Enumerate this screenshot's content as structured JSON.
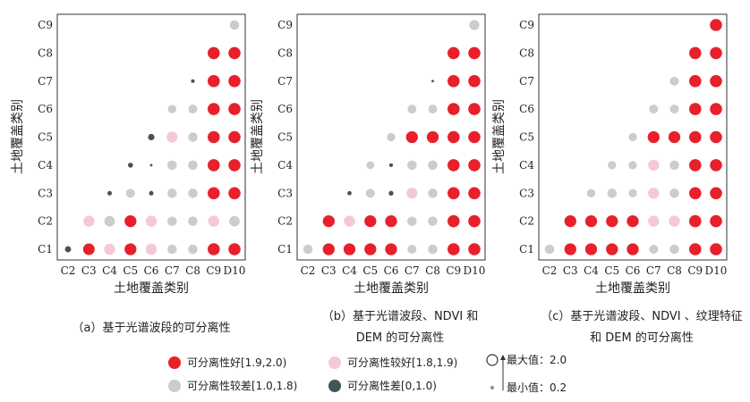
{
  "colors": {
    "good": "#e8202a",
    "fair": "#f4c9d6",
    "poor": "#cccccc",
    "bad": "#45535a"
  },
  "chart_data": [
    {
      "type": "scatter",
      "title": "",
      "xlabel": "土地覆盖类别",
      "ylabel": "土地覆盖类别",
      "x_categories": [
        "C2",
        "C3",
        "C4",
        "C5",
        "C6",
        "C7",
        "C8",
        "C9",
        "D10"
      ],
      "y_categories": [
        "C1",
        "C2",
        "C3",
        "C4",
        "C5",
        "C6",
        "C7",
        "C8",
        "C9"
      ],
      "caption": "（a）基于光谱波段的可分离性",
      "points": [
        {
          "x": "C2",
          "y": "C1",
          "value": 0.9
        },
        {
          "x": "C3",
          "y": "C1",
          "value": 1.9
        },
        {
          "x": "C4",
          "y": "C1",
          "value": 1.8
        },
        {
          "x": "C5",
          "y": "C1",
          "value": 1.95
        },
        {
          "x": "C6",
          "y": "C1",
          "value": 1.8
        },
        {
          "x": "C7",
          "y": "C1",
          "value": 1.5
        },
        {
          "x": "C8",
          "y": "C1",
          "value": 1.5
        },
        {
          "x": "C9",
          "y": "C1",
          "value": 2.0
        },
        {
          "x": "D10",
          "y": "C1",
          "value": 2.0
        },
        {
          "x": "C3",
          "y": "C2",
          "value": 1.8
        },
        {
          "x": "C4",
          "y": "C2",
          "value": 1.7
        },
        {
          "x": "C5",
          "y": "C2",
          "value": 1.95
        },
        {
          "x": "C6",
          "y": "C2",
          "value": 1.8
        },
        {
          "x": "C7",
          "y": "C2",
          "value": 1.5
        },
        {
          "x": "C8",
          "y": "C2",
          "value": 1.5
        },
        {
          "x": "C9",
          "y": "C2",
          "value": 1.8
        },
        {
          "x": "D10",
          "y": "C2",
          "value": 1.7
        },
        {
          "x": "C4",
          "y": "C3",
          "value": 0.6
        },
        {
          "x": "C5",
          "y": "C3",
          "value": 1.4
        },
        {
          "x": "C6",
          "y": "C3",
          "value": 0.6
        },
        {
          "x": "C7",
          "y": "C3",
          "value": 1.5
        },
        {
          "x": "C8",
          "y": "C3",
          "value": 1.5
        },
        {
          "x": "C9",
          "y": "C3",
          "value": 2.0
        },
        {
          "x": "D10",
          "y": "C3",
          "value": 2.0
        },
        {
          "x": "C5",
          "y": "C4",
          "value": 0.7
        },
        {
          "x": "C6",
          "y": "C4",
          "value": 0.25
        },
        {
          "x": "C7",
          "y": "C4",
          "value": 1.5
        },
        {
          "x": "C8",
          "y": "C4",
          "value": 1.5
        },
        {
          "x": "C9",
          "y": "C4",
          "value": 2.0
        },
        {
          "x": "D10",
          "y": "C4",
          "value": 2.0
        },
        {
          "x": "C6",
          "y": "C5",
          "value": 0.95
        },
        {
          "x": "C7",
          "y": "C5",
          "value": 1.8
        },
        {
          "x": "C8",
          "y": "C5",
          "value": 1.5
        },
        {
          "x": "C9",
          "y": "C5",
          "value": 2.0
        },
        {
          "x": "D10",
          "y": "C5",
          "value": 2.0
        },
        {
          "x": "C7",
          "y": "C6",
          "value": 1.3
        },
        {
          "x": "C8",
          "y": "C6",
          "value": 1.4
        },
        {
          "x": "C9",
          "y": "C6",
          "value": 2.0
        },
        {
          "x": "D10",
          "y": "C6",
          "value": 2.0
        },
        {
          "x": "C8",
          "y": "C7",
          "value": 0.45
        },
        {
          "x": "C9",
          "y": "C7",
          "value": 2.0
        },
        {
          "x": "D10",
          "y": "C7",
          "value": 2.0
        },
        {
          "x": "C9",
          "y": "C8",
          "value": 2.0
        },
        {
          "x": "D10",
          "y": "C8",
          "value": 2.0
        },
        {
          "x": "D10",
          "y": "C9",
          "value": 1.5
        }
      ]
    },
    {
      "type": "scatter",
      "title": "",
      "xlabel": "土地覆盖类别",
      "ylabel": "土地覆盖类别",
      "x_categories": [
        "C2",
        "C3",
        "C4",
        "C5",
        "C6",
        "C7",
        "C8",
        "C9",
        "D10"
      ],
      "y_categories": [
        "C1",
        "C2",
        "C3",
        "C4",
        "C5",
        "C6",
        "C7",
        "C8",
        "C9"
      ],
      "caption": "（b）基于光谱波段、NDVI 和",
      "caption2": "DEM 的可分离性",
      "points": [
        {
          "x": "C2",
          "y": "C1",
          "value": 1.5
        },
        {
          "x": "C3",
          "y": "C1",
          "value": 1.95
        },
        {
          "x": "C4",
          "y": "C1",
          "value": 1.95
        },
        {
          "x": "C5",
          "y": "C1",
          "value": 1.95
        },
        {
          "x": "C6",
          "y": "C1",
          "value": 1.95
        },
        {
          "x": "C7",
          "y": "C1",
          "value": 1.4
        },
        {
          "x": "C8",
          "y": "C1",
          "value": 1.5
        },
        {
          "x": "C9",
          "y": "C1",
          "value": 2.0
        },
        {
          "x": "D10",
          "y": "C1",
          "value": 2.0
        },
        {
          "x": "C3",
          "y": "C2",
          "value": 1.95
        },
        {
          "x": "C4",
          "y": "C2",
          "value": 1.8
        },
        {
          "x": "C5",
          "y": "C2",
          "value": 1.95
        },
        {
          "x": "C6",
          "y": "C2",
          "value": 1.95
        },
        {
          "x": "C7",
          "y": "C2",
          "value": 1.5
        },
        {
          "x": "C8",
          "y": "C2",
          "value": 1.5
        },
        {
          "x": "C9",
          "y": "C2",
          "value": 2.0
        },
        {
          "x": "D10",
          "y": "C2",
          "value": 2.0
        },
        {
          "x": "C4",
          "y": "C3",
          "value": 0.55
        },
        {
          "x": "C5",
          "y": "C3",
          "value": 1.4
        },
        {
          "x": "C6",
          "y": "C3",
          "value": 0.65
        },
        {
          "x": "C7",
          "y": "C3",
          "value": 1.8
        },
        {
          "x": "C8",
          "y": "C3",
          "value": 1.5
        },
        {
          "x": "C9",
          "y": "C3",
          "value": 2.0
        },
        {
          "x": "D10",
          "y": "C3",
          "value": 2.0
        },
        {
          "x": "C5",
          "y": "C4",
          "value": 1.2
        },
        {
          "x": "C6",
          "y": "C4",
          "value": 0.45
        },
        {
          "x": "C7",
          "y": "C4",
          "value": 1.5
        },
        {
          "x": "C8",
          "y": "C4",
          "value": 1.5
        },
        {
          "x": "C9",
          "y": "C4",
          "value": 2.0
        },
        {
          "x": "D10",
          "y": "C4",
          "value": 2.0
        },
        {
          "x": "C6",
          "y": "C5",
          "value": 1.3
        },
        {
          "x": "C7",
          "y": "C5",
          "value": 1.95
        },
        {
          "x": "C8",
          "y": "C5",
          "value": 1.95
        },
        {
          "x": "C9",
          "y": "C5",
          "value": 2.0
        },
        {
          "x": "D10",
          "y": "C5",
          "value": 2.0
        },
        {
          "x": "C7",
          "y": "C6",
          "value": 1.4
        },
        {
          "x": "C8",
          "y": "C6",
          "value": 1.4
        },
        {
          "x": "C9",
          "y": "C6",
          "value": 2.0
        },
        {
          "x": "D10",
          "y": "C6",
          "value": 2.0
        },
        {
          "x": "C8",
          "y": "C7",
          "value": 0.25
        },
        {
          "x": "C9",
          "y": "C7",
          "value": 2.0
        },
        {
          "x": "D10",
          "y": "C7",
          "value": 2.0
        },
        {
          "x": "C9",
          "y": "C8",
          "value": 2.0
        },
        {
          "x": "D10",
          "y": "C8",
          "value": 2.0
        },
        {
          "x": "D10",
          "y": "C9",
          "value": 1.6
        }
      ]
    },
    {
      "type": "scatter",
      "title": "",
      "xlabel": "土地覆盖类别",
      "ylabel": "土地覆盖类别",
      "x_categories": [
        "C2",
        "C3",
        "C4",
        "C5",
        "C6",
        "C7",
        "C8",
        "C9",
        "D10"
      ],
      "y_categories": [
        "C1",
        "C2",
        "C3",
        "C4",
        "C5",
        "C6",
        "C7",
        "C8",
        "C9"
      ],
      "caption": "（c）基于光谱波段、NDVI 、纹理特征",
      "caption2": "和 DEM 的可分离性",
      "points": [
        {
          "x": "C2",
          "y": "C1",
          "value": 1.5
        },
        {
          "x": "C3",
          "y": "C1",
          "value": 1.95
        },
        {
          "x": "C4",
          "y": "C1",
          "value": 1.95
        },
        {
          "x": "C5",
          "y": "C1",
          "value": 1.95
        },
        {
          "x": "C6",
          "y": "C1",
          "value": 1.95
        },
        {
          "x": "C7",
          "y": "C1",
          "value": 1.4
        },
        {
          "x": "C8",
          "y": "C1",
          "value": 1.5
        },
        {
          "x": "C9",
          "y": "C1",
          "value": 2.0
        },
        {
          "x": "D10",
          "y": "C1",
          "value": 2.0
        },
        {
          "x": "C3",
          "y": "C2",
          "value": 1.95
        },
        {
          "x": "C4",
          "y": "C2",
          "value": 1.95
        },
        {
          "x": "C5",
          "y": "C2",
          "value": 1.95
        },
        {
          "x": "C6",
          "y": "C2",
          "value": 1.95
        },
        {
          "x": "C7",
          "y": "C2",
          "value": 1.8
        },
        {
          "x": "C8",
          "y": "C2",
          "value": 1.8
        },
        {
          "x": "C9",
          "y": "C2",
          "value": 2.0
        },
        {
          "x": "D10",
          "y": "C2",
          "value": 2.0
        },
        {
          "x": "C4",
          "y": "C3",
          "value": 1.3
        },
        {
          "x": "C5",
          "y": "C3",
          "value": 1.5
        },
        {
          "x": "C6",
          "y": "C3",
          "value": 1.3
        },
        {
          "x": "C7",
          "y": "C3",
          "value": 1.8
        },
        {
          "x": "C8",
          "y": "C3",
          "value": 1.5
        },
        {
          "x": "C9",
          "y": "C3",
          "value": 2.0
        },
        {
          "x": "D10",
          "y": "C3",
          "value": 2.0
        },
        {
          "x": "C5",
          "y": "C4",
          "value": 1.3
        },
        {
          "x": "C6",
          "y": "C4",
          "value": 1.3
        },
        {
          "x": "C7",
          "y": "C4",
          "value": 1.8
        },
        {
          "x": "C8",
          "y": "C4",
          "value": 1.5
        },
        {
          "x": "C9",
          "y": "C4",
          "value": 2.0
        },
        {
          "x": "D10",
          "y": "C4",
          "value": 2.0
        },
        {
          "x": "C6",
          "y": "C5",
          "value": 1.3
        },
        {
          "x": "C7",
          "y": "C5",
          "value": 1.95
        },
        {
          "x": "C8",
          "y": "C5",
          "value": 1.95
        },
        {
          "x": "C9",
          "y": "C5",
          "value": 2.0
        },
        {
          "x": "D10",
          "y": "C5",
          "value": 2.0
        },
        {
          "x": "C7",
          "y": "C6",
          "value": 1.4
        },
        {
          "x": "C8",
          "y": "C6",
          "value": 1.4
        },
        {
          "x": "C9",
          "y": "C6",
          "value": 2.0
        },
        {
          "x": "D10",
          "y": "C6",
          "value": 2.0
        },
        {
          "x": "C8",
          "y": "C7",
          "value": 1.4
        },
        {
          "x": "C9",
          "y": "C7",
          "value": 2.0
        },
        {
          "x": "D10",
          "y": "C7",
          "value": 2.0
        },
        {
          "x": "C9",
          "y": "C8",
          "value": 2.0
        },
        {
          "x": "D10",
          "y": "C8",
          "value": 2.0
        },
        {
          "x": "D10",
          "y": "C9",
          "value": 2.0
        }
      ]
    }
  ],
  "legend": {
    "items": [
      {
        "key": "good",
        "label": "可分离性好[1.9,2.0)"
      },
      {
        "key": "fair",
        "label": "可分离性较好[1.8,1.9)"
      },
      {
        "key": "poor",
        "label": "可分离性较差[1.0,1.8)"
      },
      {
        "key": "bad",
        "label": "可分离性差[0,1.0)"
      }
    ],
    "size_max_label": "最大值：2.0",
    "size_min_label": "最小值：0.2"
  }
}
